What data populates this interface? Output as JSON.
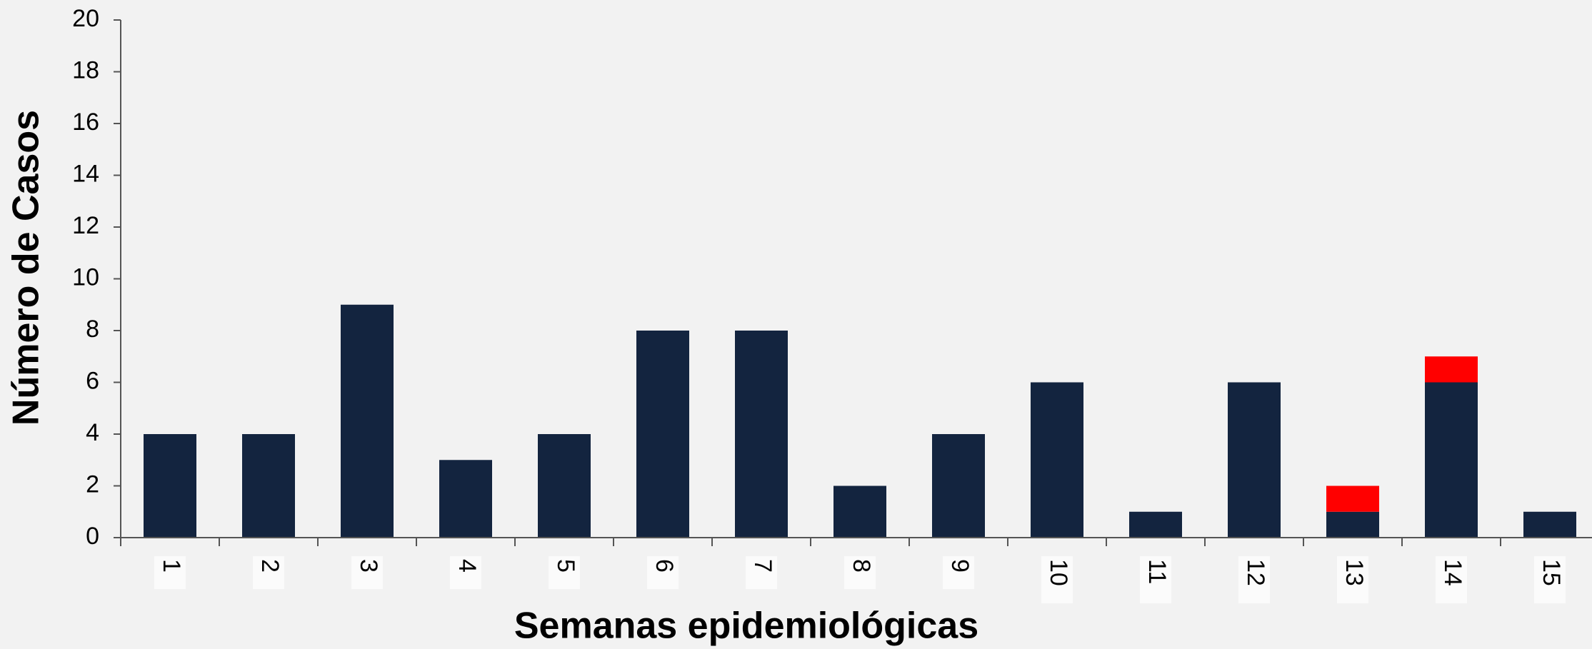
{
  "chart_data": {
    "type": "bar",
    "stacked": true,
    "x_label": "Semanas epidemiológicas",
    "y_label": "Número de Casos",
    "categories": [
      "1",
      "2",
      "3",
      "4",
      "5",
      "6",
      "7",
      "8",
      "9",
      "10",
      "11",
      "12",
      "13",
      "14",
      "15"
    ],
    "series": [
      {
        "color": "#13243f",
        "values": [
          4,
          4,
          9,
          3,
          4,
          8,
          8,
          2,
          4,
          6,
          1,
          6,
          1,
          6,
          1
        ]
      },
      {
        "color": "#ff0000",
        "values": [
          0,
          0,
          0,
          0,
          0,
          0,
          0,
          0,
          0,
          0,
          0,
          0,
          1,
          1,
          0
        ]
      }
    ],
    "ylim": [
      0,
      20
    ],
    "yticks": [
      0,
      2,
      4,
      6,
      8,
      10,
      12,
      14,
      16,
      18,
      20
    ]
  }
}
